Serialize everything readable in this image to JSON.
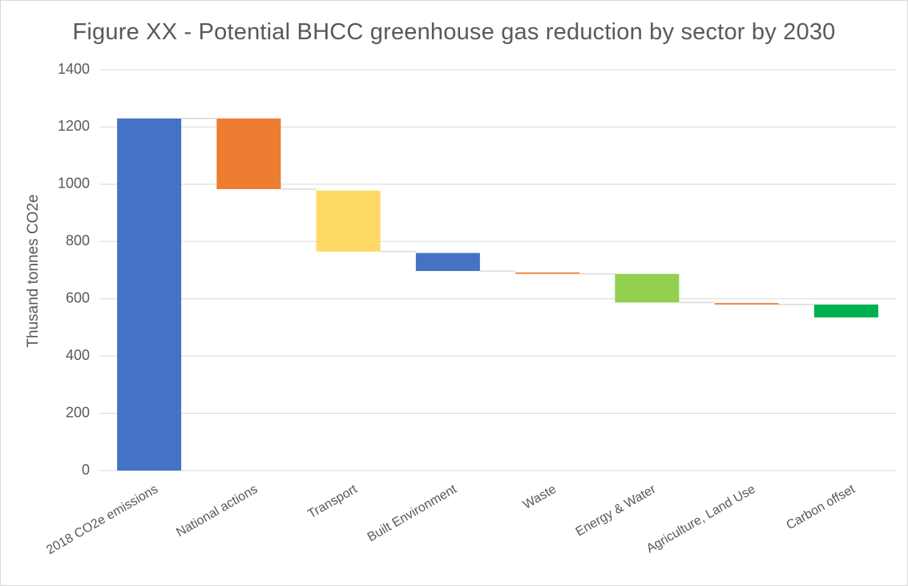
{
  "chart_data": {
    "type": "bar",
    "subtype": "waterfall",
    "title": "Figure XX - Potential BHCC greenhouse gas reduction by sector by 2030",
    "xlabel": "",
    "ylabel": "Thusand tonnes CO2e",
    "ylim": [
      0,
      1400
    ],
    "yticks": [
      0,
      200,
      400,
      600,
      800,
      1000,
      1200,
      1400
    ],
    "grid": true,
    "legend": "none",
    "categories": [
      "2018 CO2e emissions",
      "National actions",
      "Transport",
      "Built Environment",
      "Waste",
      "Energy & Water",
      "Agriculture, Land Use",
      "Carbon offset"
    ],
    "bars": [
      {
        "start": 0,
        "end": 1230,
        "color": "#4472C4"
      },
      {
        "start": 1230,
        "end": 983,
        "color": "#ED7D31"
      },
      {
        "start": 978,
        "end": 765,
        "color": "#FFD966"
      },
      {
        "start": 760,
        "end": 697,
        "color": "#4472C4"
      },
      {
        "start": 692,
        "end": 687,
        "color": "#ED7D31"
      },
      {
        "start": 687,
        "end": 587,
        "color": "#92D050"
      },
      {
        "start": 585,
        "end": 580,
        "color": "#ED7D31"
      },
      {
        "start": 580,
        "end": 535,
        "color": "#00B050"
      }
    ],
    "colors": {
      "grid": "#d9d9d9",
      "text": "#595959",
      "connector": "#d9d9d9"
    }
  }
}
